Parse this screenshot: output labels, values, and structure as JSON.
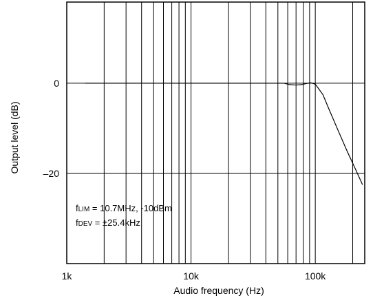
{
  "chart_data": {
    "type": "line",
    "x_scale": "log",
    "xlim": [
      1000,
      250000
    ],
    "ylim": [
      -40,
      18
    ],
    "grid": true,
    "xlabel": "Audio frequency (Hz)",
    "ylabel": "Output level (dB)",
    "x_ticks": [
      {
        "value": 1000,
        "label": "1k"
      },
      {
        "value": 10000,
        "label": "10k"
      },
      {
        "value": 100000,
        "label": "100k"
      }
    ],
    "y_ticks": [
      {
        "value": 0,
        "label": "0"
      },
      {
        "value": -20,
        "label": "–20"
      }
    ],
    "annotation": {
      "line1_main": "f",
      "line1_sub": "LIM",
      "line1_rest": " = 10.7MHz, -10dBm",
      "line2_main": "f",
      "line2_sub": "DEV",
      "line2_rest": " = ±25.4kHz"
    },
    "series": [
      {
        "points": [
          [
            1400,
            0
          ],
          [
            10000,
            0
          ],
          [
            40000,
            0
          ],
          [
            56000,
            0
          ],
          [
            62000,
            -0.3
          ],
          [
            70000,
            -0.4
          ],
          [
            78000,
            -0.3
          ],
          [
            85000,
            -0.05
          ],
          [
            92000,
            0.1
          ],
          [
            100000,
            -0.2
          ],
          [
            115000,
            -2.5
          ],
          [
            130000,
            -6
          ],
          [
            150000,
            -10
          ],
          [
            180000,
            -15
          ],
          [
            210000,
            -19
          ],
          [
            240000,
            -22.5
          ]
        ]
      }
    ]
  }
}
